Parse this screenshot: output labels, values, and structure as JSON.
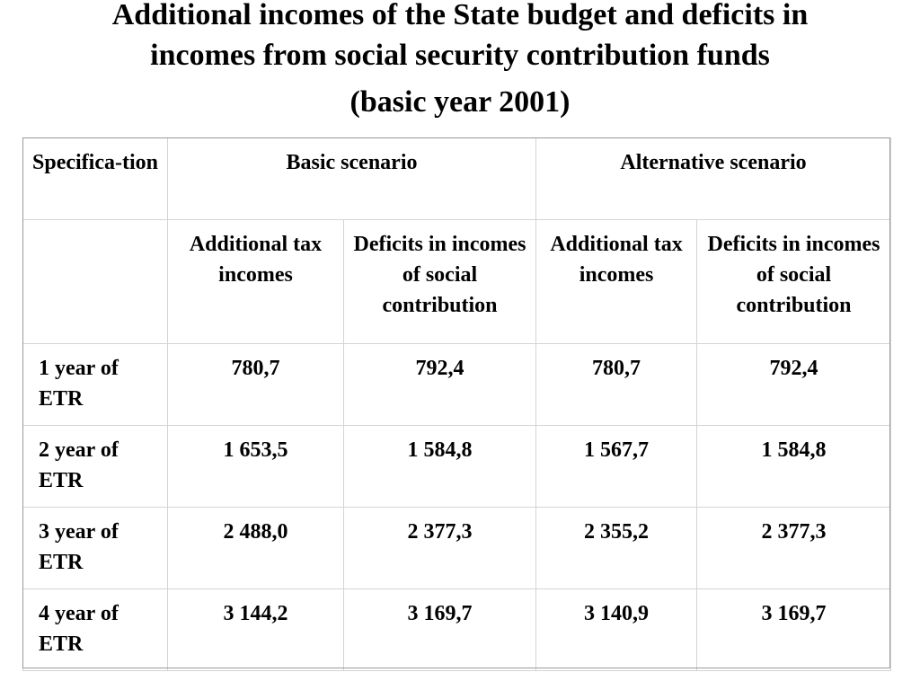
{
  "title": {
    "line1": "Additional incomes of the State budget and deficits in",
    "line2": "incomes from social security contribution funds",
    "line3": "(basic year 2001)"
  },
  "table": {
    "header_row1": {
      "specification": "Specifica-tion",
      "basic": "Basic scenario",
      "alternative": "Alternative scenario"
    },
    "header_row2": {
      "blank": "",
      "cols": [
        "Additional tax incomes",
        "Deficits in incomes of social contribution",
        "Additional tax incomes",
        "Deficits in incomes of social contribution"
      ]
    },
    "rows": [
      {
        "label": "1 year of ETR",
        "values": [
          "780,7",
          "792,4",
          "780,7",
          "792,4"
        ]
      },
      {
        "label": "2 year of ETR",
        "values": [
          "1 653,5",
          "1 584,8",
          "1 567,7",
          "1 584,8"
        ]
      },
      {
        "label": "3 year of ETR",
        "values": [
          "2 488,0",
          "2 377,3",
          "2 355,2",
          "2 377,3"
        ]
      },
      {
        "label": "4 year of ETR",
        "values": [
          "3 144,2",
          "3 169,7",
          "3 140,9",
          "3 169,7"
        ]
      }
    ]
  }
}
